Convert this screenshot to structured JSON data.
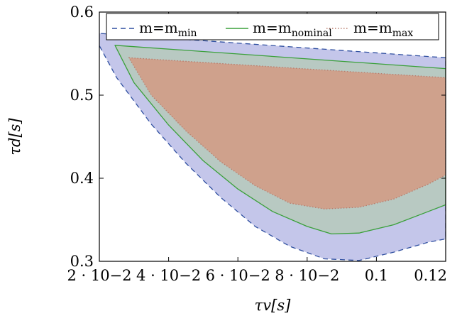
{
  "chart_data": {
    "type": "area",
    "xlabel": "τv[s]",
    "ylabel": "τd[s]",
    "xlim": [
      0.02,
      0.12
    ],
    "ylim": [
      0.3,
      0.6
    ],
    "x_ticks": [
      {
        "value": 0.02,
        "label": "2 · 10−2"
      },
      {
        "value": 0.04,
        "label": "4 · 10−2"
      },
      {
        "value": 0.06,
        "label": "6 · 10−2"
      },
      {
        "value": 0.08,
        "label": "8 · 10−2"
      },
      {
        "value": 0.1,
        "label": "0.1"
      },
      {
        "value": 0.12,
        "label": "0.12"
      }
    ],
    "y_ticks": [
      {
        "value": 0.3,
        "label": "0.3"
      },
      {
        "value": 0.4,
        "label": "0.4"
      },
      {
        "value": 0.5,
        "label": "0.5"
      },
      {
        "value": 0.6,
        "label": "0.6"
      }
    ],
    "legend_position": "top",
    "series": [
      {
        "name": "m=mmin",
        "legend_main": "m=m",
        "legend_sub": "min",
        "line_style": "dashed",
        "line_color": "#2f4fa0",
        "fill_color": "#c4c6ea",
        "upper": {
          "x": [
            0.018,
            0.12
          ],
          "y": [
            0.575,
            0.545
          ]
        },
        "lower": {
          "x": [
            0.018,
            0.025,
            0.035,
            0.045,
            0.055,
            0.065,
            0.075,
            0.085,
            0.095,
            0.105,
            0.115,
            0.12
          ],
          "y": [
            0.575,
            0.521,
            0.465,
            0.418,
            0.377,
            0.342,
            0.318,
            0.303,
            0.301,
            0.311,
            0.323,
            0.327
          ]
        }
      },
      {
        "name": "m=mnominal",
        "legend_main": "m=m",
        "legend_sub": "nominal",
        "line_style": "solid",
        "line_color": "#3aa03a",
        "fill_color": "#b8c9c2",
        "upper": {
          "x": [
            0.0245,
            0.12
          ],
          "y": [
            0.56,
            0.532
          ]
        },
        "lower": {
          "x": [
            0.0245,
            0.03,
            0.04,
            0.05,
            0.06,
            0.07,
            0.08,
            0.087,
            0.095,
            0.105,
            0.115,
            0.12
          ],
          "y": [
            0.56,
            0.515,
            0.464,
            0.421,
            0.387,
            0.36,
            0.342,
            0.333,
            0.334,
            0.344,
            0.36,
            0.368
          ]
        }
      },
      {
        "name": "m=mmax",
        "legend_main": "m=m",
        "legend_sub": "max",
        "line_style": "dotted",
        "line_color": "#b87a6a",
        "fill_color": "#cfa18c",
        "upper": {
          "x": [
            0.0285,
            0.12
          ],
          "y": [
            0.545,
            0.521
          ]
        },
        "lower": {
          "x": [
            0.0285,
            0.035,
            0.045,
            0.055,
            0.065,
            0.075,
            0.085,
            0.095,
            0.105,
            0.115,
            0.12
          ],
          "y": [
            0.545,
            0.5,
            0.457,
            0.42,
            0.391,
            0.37,
            0.363,
            0.365,
            0.375,
            0.393,
            0.404
          ]
        }
      }
    ]
  }
}
